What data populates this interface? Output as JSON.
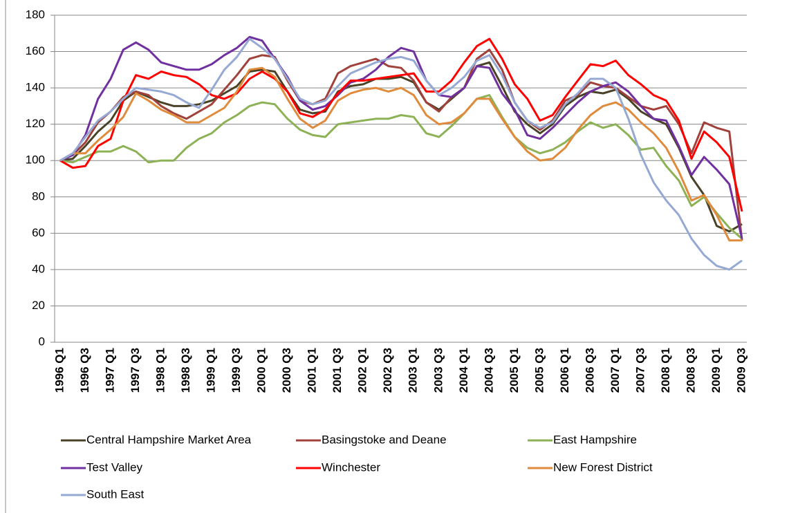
{
  "chart_data": {
    "type": "line",
    "categories": [
      "1996 Q1",
      null,
      "1996 Q3",
      null,
      "1997 Q1",
      null,
      "1997 Q3",
      null,
      "1998 Q1",
      null,
      "1998 Q3",
      null,
      "1999 Q1",
      null,
      "1999 Q3",
      null,
      "2000 Q1",
      null,
      "2000 Q3",
      null,
      "2001 Q1",
      null,
      "2001 Q3",
      null,
      "2002 Q1",
      null,
      "2002 Q3",
      null,
      "2003 Q1",
      null,
      "2003 Q3",
      null,
      "2004 Q1",
      null,
      "2004 Q3",
      null,
      "2005 Q1",
      null,
      "2005 Q3",
      null,
      "2006 Q1",
      null,
      "2006 Q3",
      null,
      "2007 Q1",
      null,
      "2007 Q3",
      null,
      "2008 Q1",
      null,
      "2008 Q3",
      null,
      "2009 Q1",
      null,
      "2009 Q3"
    ],
    "series": [
      {
        "name": "Central Hampshire Market Area",
        "color": "#4a4227",
        "values": [
          100,
          101,
          108,
          116,
          122,
          133,
          138,
          135,
          132,
          130,
          130,
          131,
          133,
          137,
          141,
          149,
          150,
          149,
          138,
          128,
          126,
          127,
          138,
          141,
          142,
          145,
          145,
          146,
          143,
          132,
          128,
          134,
          140,
          152,
          154,
          141,
          127,
          120,
          115,
          120,
          130,
          135,
          138,
          137,
          139,
          134,
          127,
          123,
          120,
          107,
          91,
          81,
          64,
          61,
          65
        ]
      },
      {
        "name": "Basingstoke and Deane",
        "color": "#a0413c",
        "values": [
          100,
          103,
          110,
          121,
          127,
          135,
          138,
          136,
          130,
          126,
          123,
          127,
          131,
          139,
          147,
          156,
          158,
          157,
          144,
          133,
          131,
          134,
          148,
          152,
          154,
          156,
          152,
          151,
          144,
          132,
          127,
          135,
          140,
          156,
          161,
          150,
          132,
          122,
          117,
          122,
          133,
          136,
          143,
          141,
          140,
          135,
          130,
          128,
          130,
          120,
          104,
          121,
          118,
          116,
          56
        ]
      },
      {
        "name": "East Hampshire",
        "color": "#8db255",
        "values": [
          100,
          99,
          102,
          105,
          105,
          108,
          105,
          99,
          100,
          100,
          107,
          112,
          115,
          121,
          125,
          130,
          132,
          131,
          123,
          117,
          114,
          113,
          120,
          121,
          122,
          123,
          123,
          125,
          124,
          115,
          113,
          119,
          126,
          134,
          136,
          124,
          113,
          107,
          104,
          106,
          110,
          116,
          121,
          118,
          120,
          114,
          106,
          107,
          97,
          89,
          75,
          80,
          71,
          63,
          57
        ]
      },
      {
        "name": "Test Valley",
        "color": "#7030a0",
        "values": [
          100,
          103,
          114,
          134,
          145,
          161,
          165,
          161,
          154,
          152,
          150,
          150,
          153,
          158,
          162,
          168,
          166,
          156,
          146,
          133,
          128,
          130,
          136,
          143,
          145,
          150,
          157,
          162,
          160,
          144,
          136,
          135,
          140,
          152,
          151,
          137,
          128,
          114,
          112,
          118,
          125,
          132,
          138,
          141,
          143,
          138,
          130,
          123,
          122,
          108,
          92,
          102,
          95,
          87,
          57
        ]
      },
      {
        "name": "Winchester",
        "color": "#ff0000",
        "values": [
          100,
          96,
          97,
          108,
          112,
          133,
          147,
          145,
          149,
          147,
          146,
          142,
          136,
          134,
          137,
          145,
          149,
          145,
          138,
          126,
          124,
          128,
          137,
          144,
          144,
          145,
          146,
          147,
          148,
          138,
          138,
          144,
          154,
          163,
          167,
          156,
          142,
          134,
          122,
          125,
          135,
          144,
          153,
          152,
          155,
          147,
          142,
          136,
          133,
          122,
          101,
          116,
          110,
          102,
          72
        ]
      },
      {
        "name": "New Forest District",
        "color": "#e08a3c",
        "values": [
          100,
          104,
          104,
          111,
          117,
          124,
          137,
          133,
          128,
          125,
          121,
          121,
          125,
          129,
          138,
          150,
          151,
          146,
          134,
          123,
          118,
          122,
          133,
          137,
          139,
          140,
          138,
          140,
          136,
          125,
          120,
          121,
          126,
          134,
          134,
          123,
          113,
          105,
          100,
          101,
          107,
          117,
          125,
          130,
          132,
          128,
          121,
          115,
          107,
          94,
          78,
          81,
          70,
          56,
          56
        ]
      },
      {
        "name": "South East",
        "color": "#95a9d4",
        "values": [
          100,
          104,
          113,
          122,
          127,
          134,
          140,
          139,
          138,
          136,
          132,
          129,
          139,
          150,
          157,
          167,
          162,
          156,
          145,
          134,
          131,
          133,
          141,
          148,
          151,
          154,
          156,
          157,
          155,
          144,
          136,
          140,
          146,
          155,
          158,
          147,
          132,
          122,
          118,
          121,
          131,
          137,
          145,
          145,
          140,
          123,
          103,
          88,
          78,
          70,
          57,
          48,
          42,
          40,
          45
        ]
      }
    ],
    "ylim": [
      0,
      180
    ],
    "yticks": [
      0,
      20,
      40,
      60,
      80,
      100,
      120,
      140,
      160,
      180
    ],
    "grid": true,
    "legend": "bottom"
  }
}
